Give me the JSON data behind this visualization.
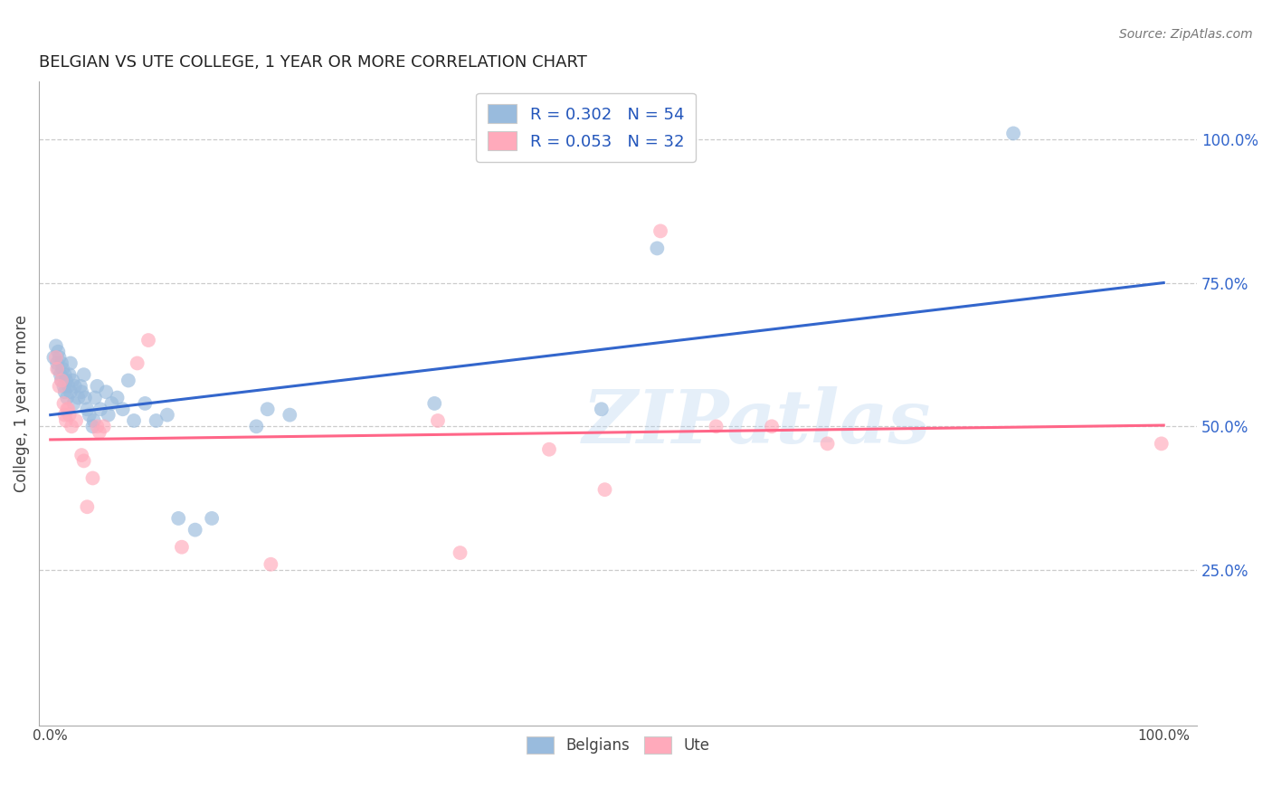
{
  "title": "BELGIAN VS UTE COLLEGE, 1 YEAR OR MORE CORRELATION CHART",
  "source": "Source: ZipAtlas.com",
  "ylabel": "College, 1 year or more",
  "ylabel_right_ticks": [
    "100.0%",
    "75.0%",
    "50.0%",
    "25.0%"
  ],
  "ylabel_right_vals": [
    1.0,
    0.75,
    0.5,
    0.25
  ],
  "watermark": "ZIPatlas",
  "legend_blue_r": "R = 0.302",
  "legend_blue_n": "N = 54",
  "legend_pink_r": "R = 0.053",
  "legend_pink_n": "N = 32",
  "blue_color": "#99BBDD",
  "pink_color": "#FFAABB",
  "blue_line_color": "#3366CC",
  "pink_line_color": "#FF6688",
  "blue_scatter": [
    [
      0.003,
      0.62
    ],
    [
      0.005,
      0.64
    ],
    [
      0.006,
      0.61
    ],
    [
      0.007,
      0.63
    ],
    [
      0.007,
      0.6
    ],
    [
      0.008,
      0.62
    ],
    [
      0.009,
      0.59
    ],
    [
      0.01,
      0.61
    ],
    [
      0.01,
      0.58
    ],
    [
      0.011,
      0.6
    ],
    [
      0.012,
      0.57
    ],
    [
      0.013,
      0.59
    ],
    [
      0.013,
      0.56
    ],
    [
      0.014,
      0.58
    ],
    [
      0.015,
      0.55
    ],
    [
      0.016,
      0.57
    ],
    [
      0.017,
      0.59
    ],
    [
      0.018,
      0.61
    ],
    [
      0.018,
      0.56
    ],
    [
      0.02,
      0.58
    ],
    [
      0.021,
      0.54
    ],
    [
      0.022,
      0.57
    ],
    [
      0.025,
      0.55
    ],
    [
      0.027,
      0.57
    ],
    [
      0.028,
      0.56
    ],
    [
      0.03,
      0.59
    ],
    [
      0.031,
      0.55
    ],
    [
      0.033,
      0.53
    ],
    [
      0.035,
      0.52
    ],
    [
      0.038,
      0.5
    ],
    [
      0.039,
      0.51
    ],
    [
      0.04,
      0.55
    ],
    [
      0.042,
      0.57
    ],
    [
      0.045,
      0.53
    ],
    [
      0.05,
      0.56
    ],
    [
      0.052,
      0.52
    ],
    [
      0.055,
      0.54
    ],
    [
      0.06,
      0.55
    ],
    [
      0.065,
      0.53
    ],
    [
      0.07,
      0.58
    ],
    [
      0.075,
      0.51
    ],
    [
      0.085,
      0.54
    ],
    [
      0.095,
      0.51
    ],
    [
      0.105,
      0.52
    ],
    [
      0.115,
      0.34
    ],
    [
      0.13,
      0.32
    ],
    [
      0.145,
      0.34
    ],
    [
      0.185,
      0.5
    ],
    [
      0.195,
      0.53
    ],
    [
      0.215,
      0.52
    ],
    [
      0.345,
      0.54
    ],
    [
      0.495,
      0.53
    ],
    [
      0.545,
      0.81
    ],
    [
      0.865,
      1.01
    ]
  ],
  "pink_scatter": [
    [
      0.005,
      0.62
    ],
    [
      0.006,
      0.6
    ],
    [
      0.008,
      0.57
    ],
    [
      0.01,
      0.58
    ],
    [
      0.012,
      0.54
    ],
    [
      0.013,
      0.52
    ],
    [
      0.014,
      0.51
    ],
    [
      0.015,
      0.53
    ],
    [
      0.016,
      0.53
    ],
    [
      0.017,
      0.52
    ],
    [
      0.019,
      0.5
    ],
    [
      0.023,
      0.51
    ],
    [
      0.028,
      0.45
    ],
    [
      0.03,
      0.44
    ],
    [
      0.033,
      0.36
    ],
    [
      0.038,
      0.41
    ],
    [
      0.042,
      0.5
    ],
    [
      0.044,
      0.49
    ],
    [
      0.048,
      0.5
    ],
    [
      0.078,
      0.61
    ],
    [
      0.088,
      0.65
    ],
    [
      0.118,
      0.29
    ],
    [
      0.198,
      0.26
    ],
    [
      0.348,
      0.51
    ],
    [
      0.368,
      0.28
    ],
    [
      0.448,
      0.46
    ],
    [
      0.498,
      0.39
    ],
    [
      0.548,
      0.84
    ],
    [
      0.598,
      0.5
    ],
    [
      0.648,
      0.5
    ],
    [
      0.698,
      0.47
    ],
    [
      0.998,
      0.47
    ]
  ],
  "blue_line": [
    [
      0.0,
      0.52
    ],
    [
      1.0,
      0.75
    ]
  ],
  "pink_line": [
    [
      0.0,
      0.477
    ],
    [
      1.0,
      0.502
    ]
  ],
  "xlim": [
    -0.01,
    1.03
  ],
  "ylim": [
    -0.02,
    1.1
  ],
  "grid_color": "#CCCCCC",
  "background_color": "#FFFFFF",
  "title_fontsize": 13,
  "source_fontsize": 10,
  "legend_fontsize": 13,
  "marker_size": 130
}
